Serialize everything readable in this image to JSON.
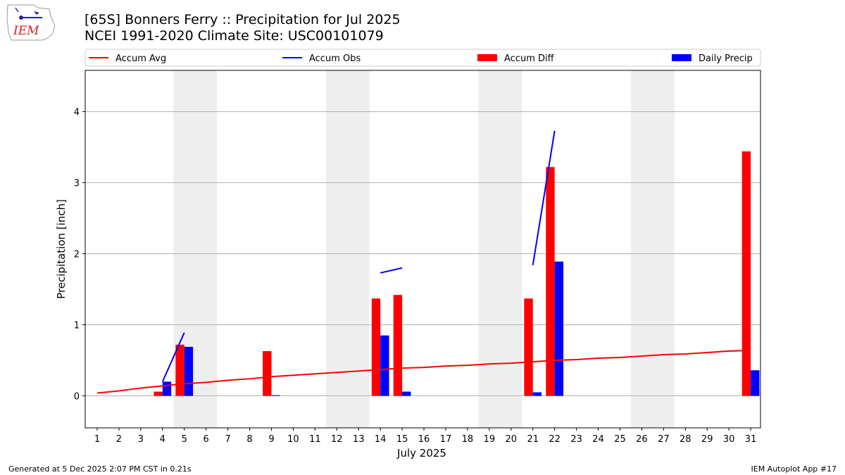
{
  "header": {
    "title_line1": "[65S] Bonners Ferry :: Precipitation for Jul 2025",
    "title_line2": "NCEI 1991-2020 Climate Site: USC00101079",
    "logo_text": "IEM"
  },
  "footer": {
    "generated": "Generated at 5 Dec 2025 2:07 PM CST in 0.21s",
    "app": "IEM Autoplot App #17"
  },
  "colors": {
    "accum_avg": "#ff0000",
    "accum_obs": "#0000ff",
    "accum_diff": "#ff0000",
    "daily_precip": "#0000ff",
    "weekend_shade": "#eeeeee",
    "grid": "#b0b0b0"
  },
  "chart_data": {
    "type": "bar",
    "xlabel": "July 2025",
    "ylabel": "Precipitation [inch]",
    "ylim": [
      -0.45,
      4.58
    ],
    "yticks": [
      0,
      1,
      2,
      3,
      4
    ],
    "grid": true,
    "legend_placement": "top",
    "x": [
      1,
      2,
      3,
      4,
      5,
      6,
      7,
      8,
      9,
      10,
      11,
      12,
      13,
      14,
      15,
      16,
      17,
      18,
      19,
      20,
      21,
      22,
      23,
      24,
      25,
      26,
      27,
      28,
      29,
      30,
      31
    ],
    "weekend_spans": [
      [
        5,
        6
      ],
      [
        12,
        13
      ],
      [
        19,
        20
      ],
      [
        26,
        27
      ]
    ],
    "series": [
      {
        "name": "Accum Avg",
        "kind": "line",
        "values": [
          0.04,
          0.07,
          0.11,
          0.14,
          0.17,
          0.19,
          0.22,
          0.24,
          0.27,
          0.29,
          0.31,
          0.33,
          0.35,
          0.37,
          0.39,
          0.4,
          0.42,
          0.43,
          0.45,
          0.46,
          0.48,
          0.5,
          0.51,
          0.53,
          0.54,
          0.56,
          0.58,
          0.59,
          0.61,
          0.63,
          0.64
        ]
      },
      {
        "name": "Accum Obs",
        "kind": "line",
        "segments": [
          [
            [
              4,
              0.2
            ],
            [
              5,
              0.89
            ]
          ],
          [
            [
              14,
              1.73
            ],
            [
              15,
              1.8
            ]
          ],
          [
            [
              21,
              1.84
            ],
            [
              22,
              3.73
            ]
          ]
        ]
      },
      {
        "name": "Accum Diff",
        "kind": "bar",
        "values": [
          0,
          0,
          0,
          0.06,
          0.72,
          0,
          0,
          0,
          0.63,
          0,
          0,
          0,
          0,
          1.37,
          1.42,
          0,
          0,
          0,
          0,
          0,
          1.37,
          3.22,
          0,
          0,
          0,
          0,
          0,
          0,
          0,
          0,
          3.44
        ]
      },
      {
        "name": "Daily Precip",
        "kind": "bar",
        "values": [
          0,
          0,
          0,
          0.2,
          0.69,
          0,
          0,
          0,
          0.01,
          0,
          0,
          0,
          0,
          0.85,
          0.06,
          0,
          0,
          0,
          0,
          0,
          0.05,
          1.89,
          0,
          0,
          0,
          0,
          0,
          0,
          0,
          0,
          0.36
        ]
      }
    ]
  }
}
